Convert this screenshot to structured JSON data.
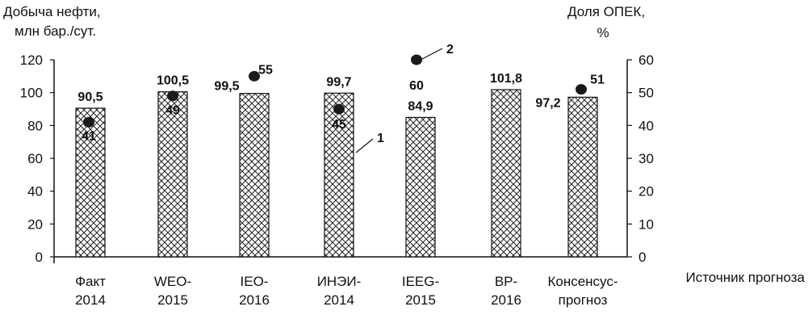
{
  "chart_data": {
    "type": "bar",
    "left_axis_title_line1": "Добыча нефти,",
    "left_axis_title_line2": "млн бар./сут.",
    "right_axis_title_line1": "Доля ОПЕК,",
    "right_axis_title_line2": "%",
    "x_axis_title": "Источник прогноза",
    "categories": [
      [
        "Факт",
        "2014"
      ],
      [
        "WEO-",
        "2015"
      ],
      [
        "IEO-",
        "2016"
      ],
      [
        "ИНЭИ-",
        "2014"
      ],
      [
        "IEEG-",
        "2015"
      ],
      [
        "BP-",
        "2016"
      ],
      [
        "Консенсус-",
        "прогноз"
      ]
    ],
    "series": [
      {
        "callout": "1",
        "axis": "left",
        "values": [
          90.5,
          100.5,
          99.5,
          99.7,
          84.9,
          101.8,
          97.2
        ],
        "labels": [
          "90,5",
          "100,5",
          "99,5",
          "99,7",
          "84,9",
          "101,8",
          "97,2"
        ]
      },
      {
        "callout": "2",
        "axis": "right",
        "values": [
          41,
          49,
          55,
          45,
          60,
          null,
          51
        ],
        "labels": [
          "41",
          "49",
          "55",
          "45",
          "60",
          "",
          "51"
        ]
      }
    ],
    "left_axis": {
      "ylim": [
        0,
        120
      ],
      "ticks": [
        "0",
        "20",
        "40",
        "60",
        "80",
        "100",
        "120"
      ]
    },
    "right_axis": {
      "ylim": [
        0,
        60
      ],
      "ticks": [
        "0",
        "10",
        "20",
        "30",
        "40",
        "50",
        "60"
      ]
    },
    "grid": false,
    "bar_pattern": "crosshatch",
    "colors": {
      "bar_fill_bg": "#ffffff",
      "hatch": "#222222",
      "marker": "#1a1a1a",
      "axis": "#111111"
    }
  }
}
